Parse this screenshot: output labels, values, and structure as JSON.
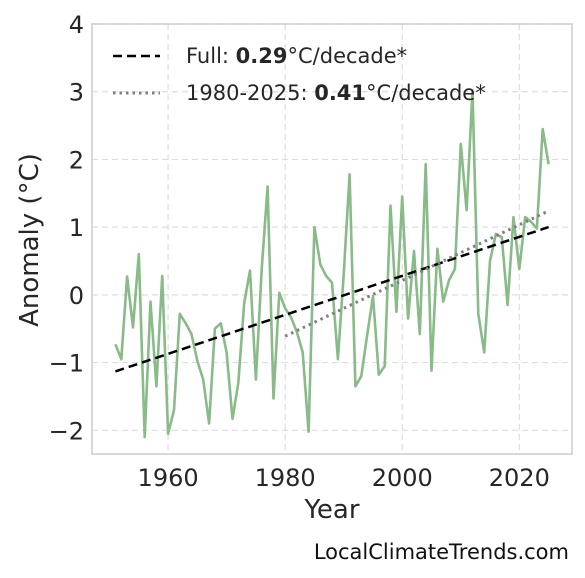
{
  "chart_data": {
    "type": "line",
    "xlabel": "Year",
    "ylabel": "Anomaly (°C)",
    "xlim": [
      1947,
      2029
    ],
    "ylim": [
      -2.35,
      4.0
    ],
    "xticks": [
      1960,
      1980,
      2000,
      2020
    ],
    "yticks": [
      -2,
      -1,
      0,
      1,
      2,
      3,
      4
    ],
    "grid": true,
    "legend_position": "top-left",
    "credit": "LocalClimateTrends.com",
    "series": [
      {
        "color": "#88bb88",
        "x": [
          1951,
          1952,
          1953,
          1954,
          1955,
          1956,
          1957,
          1958,
          1959,
          1960,
          1961,
          1962,
          1963,
          1964,
          1965,
          1966,
          1967,
          1968,
          1969,
          1970,
          1971,
          1972,
          1973,
          1974,
          1975,
          1976,
          1977,
          1978,
          1979,
          1980,
          1981,
          1982,
          1983,
          1984,
          1985,
          1986,
          1987,
          1988,
          1989,
          1990,
          1991,
          1992,
          1993,
          1994,
          1995,
          1996,
          1997,
          1998,
          1999,
          2000,
          2001,
          2002,
          2003,
          2004,
          2005,
          2006,
          2007,
          2008,
          2009,
          2010,
          2011,
          2012,
          2013,
          2014,
          2015,
          2016,
          2017,
          2018,
          2019,
          2020,
          2021,
          2022,
          2023,
          2024,
          2025
        ],
        "values": [
          -0.73,
          -0.95,
          0.27,
          -0.48,
          0.6,
          -2.1,
          -0.1,
          -1.35,
          0.28,
          -2.05,
          -1.7,
          -0.28,
          -0.42,
          -0.58,
          -0.98,
          -1.25,
          -1.9,
          -0.5,
          -0.42,
          -0.85,
          -1.83,
          -1.3,
          -0.12,
          0.36,
          -1.25,
          0.4,
          1.6,
          -1.53,
          0.03,
          -0.2,
          -0.33,
          -0.55,
          -0.85,
          -2.02,
          1.0,
          0.45,
          0.28,
          0.18,
          -0.95,
          0.3,
          1.78,
          -1.35,
          -1.2,
          -0.6,
          -0.02,
          -1.18,
          -1.05,
          1.32,
          -0.25,
          1.45,
          -0.35,
          0.65,
          -0.58,
          1.93,
          -1.12,
          0.68,
          -0.1,
          0.22,
          0.38,
          2.23,
          1.25,
          3.02,
          -0.28,
          -0.85,
          0.5,
          0.9,
          0.85,
          -0.15,
          1.15,
          0.38,
          1.15,
          1.08,
          0.98,
          2.45,
          1.93
        ]
      },
      {
        "name": "Full: 0.29°C/decade*",
        "label_prefix": "Full: ",
        "label_value": "0.29",
        "label_suffix": "°C/decade*",
        "style": "dashed",
        "color": "#000000",
        "x": [
          1951,
          2025
        ],
        "values": [
          -1.13,
          1.0
        ]
      },
      {
        "name": "1980-2025: 0.41°C/decade*",
        "label_prefix": "1980-2025: ",
        "label_value": "0.41",
        "label_suffix": "°C/decade*",
        "style": "dotted",
        "color": "#808080",
        "x": [
          1980,
          2025
        ],
        "values": [
          -0.61,
          1.24
        ]
      }
    ]
  }
}
